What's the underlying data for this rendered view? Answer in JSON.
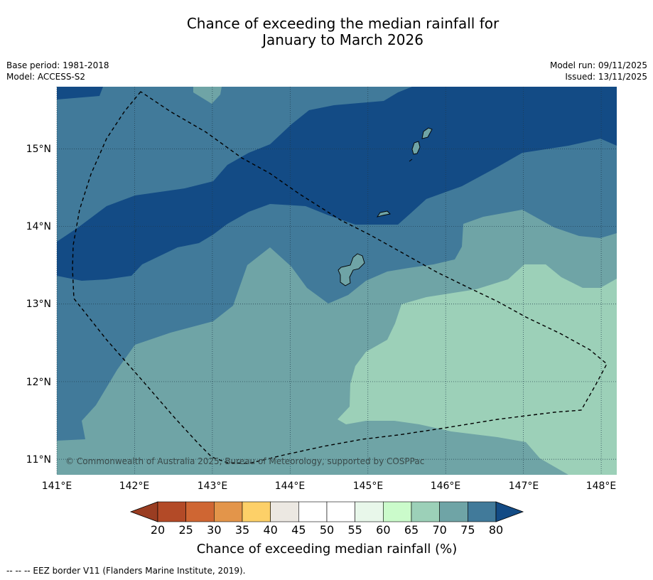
{
  "title": {
    "line1": "Chance of exceeding the median rainfall for",
    "line2": "January to March 2026"
  },
  "meta": {
    "base_period": "Base period: 1981-2018",
    "model": "Model: ACCESS-S2",
    "model_run": "Model run: 09/11/2025",
    "issued": "Issued: 13/11/2025"
  },
  "map": {
    "lon_labels": [
      "141°E",
      "142°E",
      "143°E",
      "144°E",
      "145°E",
      "146°E",
      "147°E",
      "148°E"
    ],
    "lat_labels": [
      "15°N",
      "14°N",
      "13°N",
      "12°N",
      "11°N"
    ],
    "lon_range": [
      141.0,
      148.2
    ],
    "lat_range": [
      10.8,
      15.8
    ],
    "copyright": "© Commonwealth of Australia 2025, Bureau of Meteorology, supported by COSPPac"
  },
  "colorbar": {
    "ticks": [
      "20",
      "25",
      "30",
      "35",
      "40",
      "45",
      "50",
      "55",
      "60",
      "65",
      "70",
      "75",
      "80"
    ],
    "colors": [
      "#b34a27",
      "#cf6633",
      "#e3954a",
      "#fdd068",
      "#ece8e2",
      "#ffffff",
      "#ffffff",
      "#e8f7ea",
      "#cbfbcb",
      "#9cd0b8",
      "#6fa4a6",
      "#417a9a"
    ],
    "under_color": "#9a3d22",
    "over_color": "#134b85",
    "label": "Chance of exceeding median rainfall (%)"
  },
  "zone_colors": {
    "z80": "#134b85",
    "z75": "#417a9a",
    "z70": "#6fa4a6",
    "z65": "#9cd0b8"
  },
  "footer": {
    "legend": "--  --  -- EEZ border V11 (Flanders Marine Institute, 2019)."
  }
}
